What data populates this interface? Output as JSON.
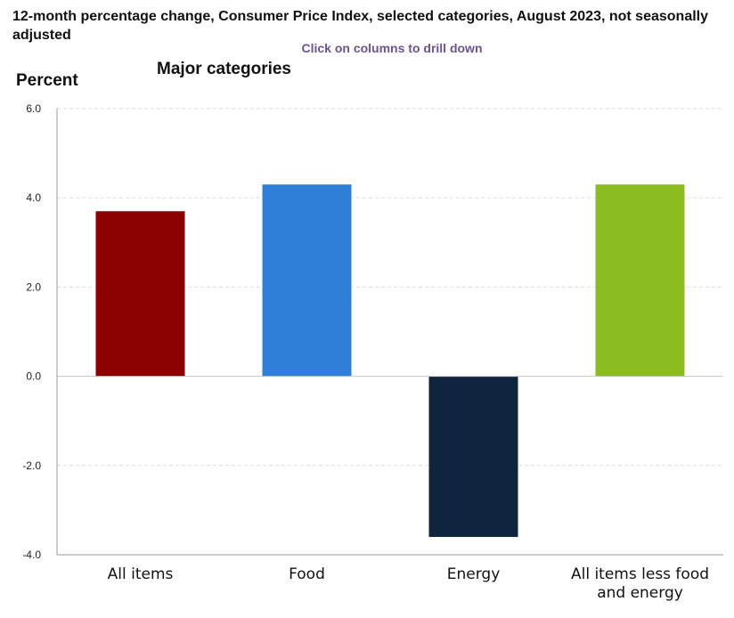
{
  "header": {
    "title": "12-month percentage change, Consumer Price Index, selected categories, August 2023, not seasonally adjusted",
    "drill_hint": "Click on columns to drill down"
  },
  "chart_data": {
    "type": "bar",
    "title": "12-month percentage change, Consumer Price Index, selected categories, August 2023, not seasonally adjusted",
    "subtitle": "Major categories",
    "ylabel": "Percent",
    "xlabel": "",
    "ylim": [
      -4.0,
      6.0
    ],
    "yticks": [
      "6.0",
      "4.0",
      "2.0",
      "0.0",
      "-2.0",
      "-4.0"
    ],
    "grid": true,
    "categories": [
      {
        "lines": [
          "All items"
        ]
      },
      {
        "lines": [
          "Food"
        ]
      },
      {
        "lines": [
          "Energy"
        ]
      },
      {
        "lines": [
          "All items less food",
          "and energy"
        ]
      }
    ],
    "values": [
      3.7,
      4.3,
      -3.6,
      4.3
    ],
    "colors": [
      "#8b0000",
      "#2f7ed8",
      "#0e253d",
      "#8bbc21"
    ]
  }
}
